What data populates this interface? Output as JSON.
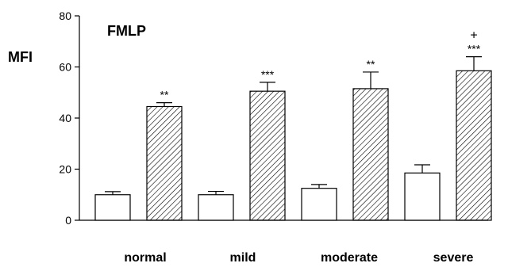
{
  "chart_data": {
    "type": "bar",
    "title": "FMLP",
    "ylabel": "MFI",
    "xlabel": "",
    "ylim": [
      0,
      80
    ],
    "yticks": [
      0,
      20,
      40,
      60,
      80
    ],
    "categories": [
      "normal",
      "mild",
      "moderate",
      "severe"
    ],
    "grid": false,
    "legend": "none",
    "series": [
      {
        "fill": "plain",
        "values": [
          10,
          10,
          12.5,
          18.5
        ],
        "errors": [
          1.2,
          1.3,
          1.5,
          3.2
        ],
        "significance": [
          "",
          "",
          "",
          ""
        ],
        "extra_marks": [
          "",
          "",
          "",
          ""
        ]
      },
      {
        "fill": "hatched",
        "values": [
          44.5,
          50.5,
          51.5,
          58.5
        ],
        "errors": [
          1.5,
          3.5,
          6.5,
          5.5
        ],
        "significance": [
          "**",
          "***",
          "**",
          "***"
        ],
        "extra_marks": [
          "",
          "",
          "",
          "+"
        ]
      }
    ],
    "colors": {
      "bar_stroke": "#000000",
      "bar_fill": "#ffffff",
      "hatch": "#000000",
      "axis": "#000000"
    }
  }
}
